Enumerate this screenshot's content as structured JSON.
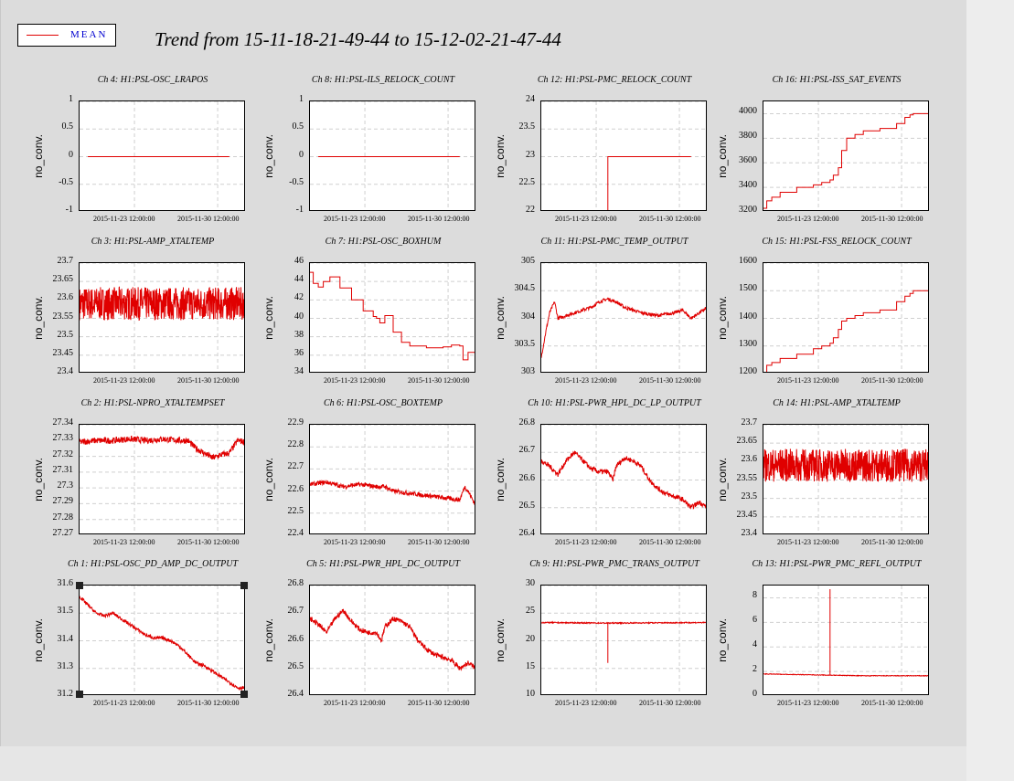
{
  "legend": {
    "label": "MEAN",
    "color": "#e00000"
  },
  "title": "Trend from 15-11-18-21-49-44 to 15-12-02-21-47-44",
  "x_ticks": [
    "2015-11-23 12:00:00",
    "2015-11-30 12:00:00"
  ],
  "y_axis_label": "no_conv.",
  "line_color": "#e00000",
  "chart_data": [
    {
      "type": "line",
      "title": "Ch 4: H1:PSL-OSC_LRAPOS",
      "ylabel": "no_conv.",
      "ylim": [
        -1,
        1
      ],
      "yticks": [
        "1",
        "0.5",
        "0",
        "-0.5",
        "-1"
      ],
      "x": [
        0.05,
        0.9
      ],
      "values": [
        0,
        0
      ]
    },
    {
      "type": "line",
      "title": "Ch 8: H1:PSL-ILS_RELOCK_COUNT",
      "ylabel": "no_conv.",
      "ylim": [
        -1,
        1
      ],
      "yticks": [
        "1",
        "0.5",
        "0",
        "-0.5",
        "-1"
      ],
      "x": [
        0.05,
        0.9
      ],
      "values": [
        0,
        0
      ]
    },
    {
      "type": "line",
      "title": "Ch 12: H1:PSL-PMC_RELOCK_COUNT",
      "ylabel": "no_conv.",
      "ylim": [
        22,
        24
      ],
      "yticks": [
        "24",
        "23.5",
        "23",
        "22.5",
        "22"
      ],
      "x": [
        0.4,
        0.4,
        0.9
      ],
      "values": [
        22,
        23,
        23
      ]
    },
    {
      "type": "line",
      "title": "Ch 16: H1:PSL-ISS_SAT_EVENTS",
      "ylabel": "no_conv.",
      "ylim": [
        3200,
        4100
      ],
      "yticks": [
        "4000",
        "3800",
        "3600",
        "3400",
        "3200"
      ],
      "x": [
        0,
        0.02,
        0.05,
        0.1,
        0.2,
        0.3,
        0.35,
        0.4,
        0.42,
        0.45,
        0.47,
        0.5,
        0.55,
        0.6,
        0.7,
        0.8,
        0.85,
        0.88,
        0.9,
        1.0
      ],
      "values": [
        3230,
        3290,
        3320,
        3360,
        3400,
        3420,
        3440,
        3460,
        3500,
        3560,
        3700,
        3800,
        3830,
        3860,
        3880,
        3920,
        3970,
        3990,
        4000,
        4020
      ]
    },
    {
      "type": "line",
      "title": "Ch 3: H1:PSL-AMP_XTALTEMP",
      "ylabel": "no_conv.",
      "ylim": [
        23.4,
        23.7
      ],
      "yticks": [
        "23.7",
        "23.65",
        "23.6",
        "23.55",
        "23.5",
        "23.45",
        "23.4"
      ],
      "mean": 23.59,
      "noise": 0.09
    },
    {
      "type": "line",
      "title": "Ch 7: H1:PSL-OSC_BOXHUM",
      "ylabel": "no_conv.",
      "ylim": [
        34,
        46
      ],
      "yticks": [
        "46",
        "44",
        "42",
        "40",
        "38",
        "36",
        "34"
      ],
      "x": [
        0,
        0.02,
        0.05,
        0.08,
        0.12,
        0.18,
        0.25,
        0.32,
        0.38,
        0.4,
        0.42,
        0.45,
        0.5,
        0.55,
        0.6,
        0.7,
        0.8,
        0.85,
        0.9,
        0.92,
        0.95,
        1.0
      ],
      "values": [
        45,
        43.8,
        43.4,
        44,
        44.5,
        43.3,
        42,
        40.8,
        40.2,
        40,
        39.5,
        40.3,
        38.5,
        37.4,
        37,
        36.8,
        36.9,
        37.1,
        37,
        35.5,
        36.3,
        37
      ]
    },
    {
      "type": "line",
      "title": "Ch 11: H1:PSL-PMC_TEMP_OUTPUT",
      "ylabel": "no_conv.",
      "ylim": [
        303,
        305
      ],
      "yticks": [
        "305",
        "304.5",
        "304",
        "303.5",
        "303"
      ],
      "x": [
        0,
        0.03,
        0.05,
        0.08,
        0.1,
        0.15,
        0.2,
        0.25,
        0.3,
        0.35,
        0.4,
        0.45,
        0.5,
        0.6,
        0.7,
        0.8,
        0.85,
        0.9,
        0.95,
        1.0
      ],
      "values": [
        303.3,
        303.8,
        304.1,
        304.3,
        304.0,
        304.05,
        304.1,
        304.15,
        304.2,
        304.3,
        304.35,
        304.3,
        304.2,
        304.1,
        304.05,
        304.1,
        304.15,
        304.0,
        304.1,
        304.2
      ],
      "noise": 0.06
    },
    {
      "type": "line",
      "title": "Ch 15: H1:PSL-FSS_RELOCK_COUNT",
      "ylabel": "no_conv.",
      "ylim": [
        1200,
        1600
      ],
      "yticks": [
        "1600",
        "1500",
        "1400",
        "1300",
        "1200"
      ],
      "x": [
        0,
        0.02,
        0.05,
        0.1,
        0.2,
        0.3,
        0.35,
        0.4,
        0.42,
        0.45,
        0.47,
        0.5,
        0.55,
        0.6,
        0.7,
        0.8,
        0.85,
        0.88,
        0.9,
        1.0
      ],
      "values": [
        1205,
        1230,
        1240,
        1255,
        1270,
        1290,
        1300,
        1310,
        1330,
        1360,
        1390,
        1400,
        1410,
        1420,
        1430,
        1460,
        1480,
        1490,
        1500,
        1505
      ]
    },
    {
      "type": "line",
      "title": "Ch 2: H1:PSL-NPRO_XTALTEMPSET",
      "ylabel": "no_conv.",
      "ylim": [
        27.27,
        27.34
      ],
      "yticks": [
        "27.34",
        "27.33",
        "27.32",
        "27.31",
        "27.3",
        "27.29",
        "27.28",
        "27.27"
      ],
      "x": [
        0,
        0.1,
        0.2,
        0.3,
        0.4,
        0.5,
        0.6,
        0.65,
        0.7,
        0.75,
        0.8,
        0.85,
        0.9,
        0.95,
        1.0
      ],
      "values": [
        27.329,
        27.33,
        27.33,
        27.331,
        27.33,
        27.331,
        27.33,
        27.33,
        27.325,
        27.322,
        27.319,
        27.321,
        27.322,
        27.33,
        27.329
      ],
      "noise": 0.004
    },
    {
      "type": "line",
      "title": "Ch 6: H1:PSL-OSC_BOXTEMP",
      "ylabel": "no_conv.",
      "ylim": [
        22.4,
        22.9
      ],
      "yticks": [
        "22.9",
        "22.8",
        "22.7",
        "22.6",
        "22.5",
        "22.4"
      ],
      "x": [
        0,
        0.1,
        0.2,
        0.3,
        0.4,
        0.45,
        0.5,
        0.6,
        0.7,
        0.8,
        0.9,
        0.93,
        0.95,
        1.0
      ],
      "values": [
        22.63,
        22.64,
        22.62,
        22.63,
        22.62,
        22.62,
        22.6,
        22.59,
        22.58,
        22.57,
        22.56,
        22.62,
        22.6,
        22.53
      ],
      "noise": 0.02
    },
    {
      "type": "line",
      "title": "Ch 10: H1:PSL-PWR_HPL_DC_LP_OUTPUT",
      "ylabel": "no_conv.",
      "ylim": [
        26.4,
        26.8
      ],
      "yticks": [
        "26.8",
        "26.7",
        "26.6",
        "26.5",
        "26.4"
      ],
      "x": [
        0,
        0.05,
        0.1,
        0.15,
        0.2,
        0.25,
        0.3,
        0.35,
        0.4,
        0.43,
        0.45,
        0.5,
        0.55,
        0.6,
        0.65,
        0.7,
        0.75,
        0.8,
        0.85,
        0.9,
        0.95,
        1.0
      ],
      "values": [
        26.67,
        26.65,
        26.62,
        26.67,
        26.7,
        26.67,
        26.64,
        26.63,
        26.63,
        26.6,
        26.65,
        26.68,
        26.67,
        26.65,
        26.6,
        26.57,
        26.55,
        26.54,
        26.53,
        26.5,
        26.52,
        26.5
      ],
      "noise": 0.018
    },
    {
      "type": "line",
      "title": "Ch 14: H1:PSL-AMP_XTALTEMP",
      "ylabel": "no_conv.",
      "ylim": [
        23.4,
        23.7
      ],
      "yticks": [
        "23.7",
        "23.65",
        "23.6",
        "23.55",
        "23.5",
        "23.45",
        "23.4"
      ],
      "mean": 23.59,
      "noise": 0.09
    },
    {
      "type": "line",
      "title": "Ch 1: H1:PSL-OSC_PD_AMP_DC_OUTPUT",
      "ylabel": "no_conv.",
      "ylim": [
        31.2,
        31.6
      ],
      "yticks": [
        "31.6",
        "31.5",
        "31.4",
        "31.3",
        "31.2"
      ],
      "x": [
        0,
        0.05,
        0.1,
        0.15,
        0.2,
        0.25,
        0.3,
        0.35,
        0.4,
        0.45,
        0.5,
        0.55,
        0.6,
        0.65,
        0.7,
        0.75,
        0.8,
        0.85,
        0.9,
        0.95,
        1.0
      ],
      "values": [
        31.56,
        31.53,
        31.5,
        31.49,
        31.5,
        31.48,
        31.46,
        31.44,
        31.42,
        31.41,
        31.41,
        31.4,
        31.38,
        31.35,
        31.32,
        31.31,
        31.29,
        31.27,
        31.25,
        31.23,
        31.23
      ],
      "noise": 0.012
    },
    {
      "type": "line",
      "title": "Ch 5: H1:PSL-PWR_HPL_DC_OUTPUT",
      "ylabel": "no_conv.",
      "ylim": [
        26.4,
        26.8
      ],
      "yticks": [
        "26.8",
        "26.7",
        "26.6",
        "26.5",
        "26.4"
      ],
      "x": [
        0,
        0.05,
        0.1,
        0.15,
        0.2,
        0.25,
        0.3,
        0.35,
        0.4,
        0.43,
        0.45,
        0.5,
        0.55,
        0.6,
        0.65,
        0.7,
        0.75,
        0.8,
        0.85,
        0.9,
        0.95,
        1.0
      ],
      "values": [
        26.68,
        26.66,
        26.63,
        26.68,
        26.71,
        26.67,
        26.64,
        26.63,
        26.63,
        26.6,
        26.65,
        26.68,
        26.67,
        26.65,
        26.6,
        26.57,
        26.55,
        26.54,
        26.53,
        26.5,
        26.52,
        26.5
      ],
      "noise": 0.018
    },
    {
      "type": "line",
      "title": "Ch 9: H1:PSL-PWR_PMC_TRANS_OUTPUT",
      "ylabel": "no_conv.",
      "ylim": [
        10,
        30
      ],
      "yticks": [
        "30",
        "25",
        "20",
        "15",
        "10"
      ],
      "x": [
        0,
        0.4,
        0.4,
        0.4,
        1.0
      ],
      "values": [
        23.3,
        23.2,
        16,
        23.2,
        23.3
      ],
      "noise": 0.2
    },
    {
      "type": "line",
      "title": "Ch 13: H1:PSL-PWR_PMC_REFL_OUTPUT",
      "ylabel": "no_conv.",
      "ylim": [
        0,
        9
      ],
      "yticks": [
        "8",
        "6",
        "4",
        "2",
        "0"
      ],
      "x": [
        0,
        0.2,
        0.4,
        0.4,
        0.4,
        0.6,
        0.8,
        1.0
      ],
      "values": [
        1.8,
        1.75,
        1.7,
        8.7,
        1.7,
        1.65,
        1.65,
        1.65
      ],
      "noise": 0.05
    }
  ]
}
